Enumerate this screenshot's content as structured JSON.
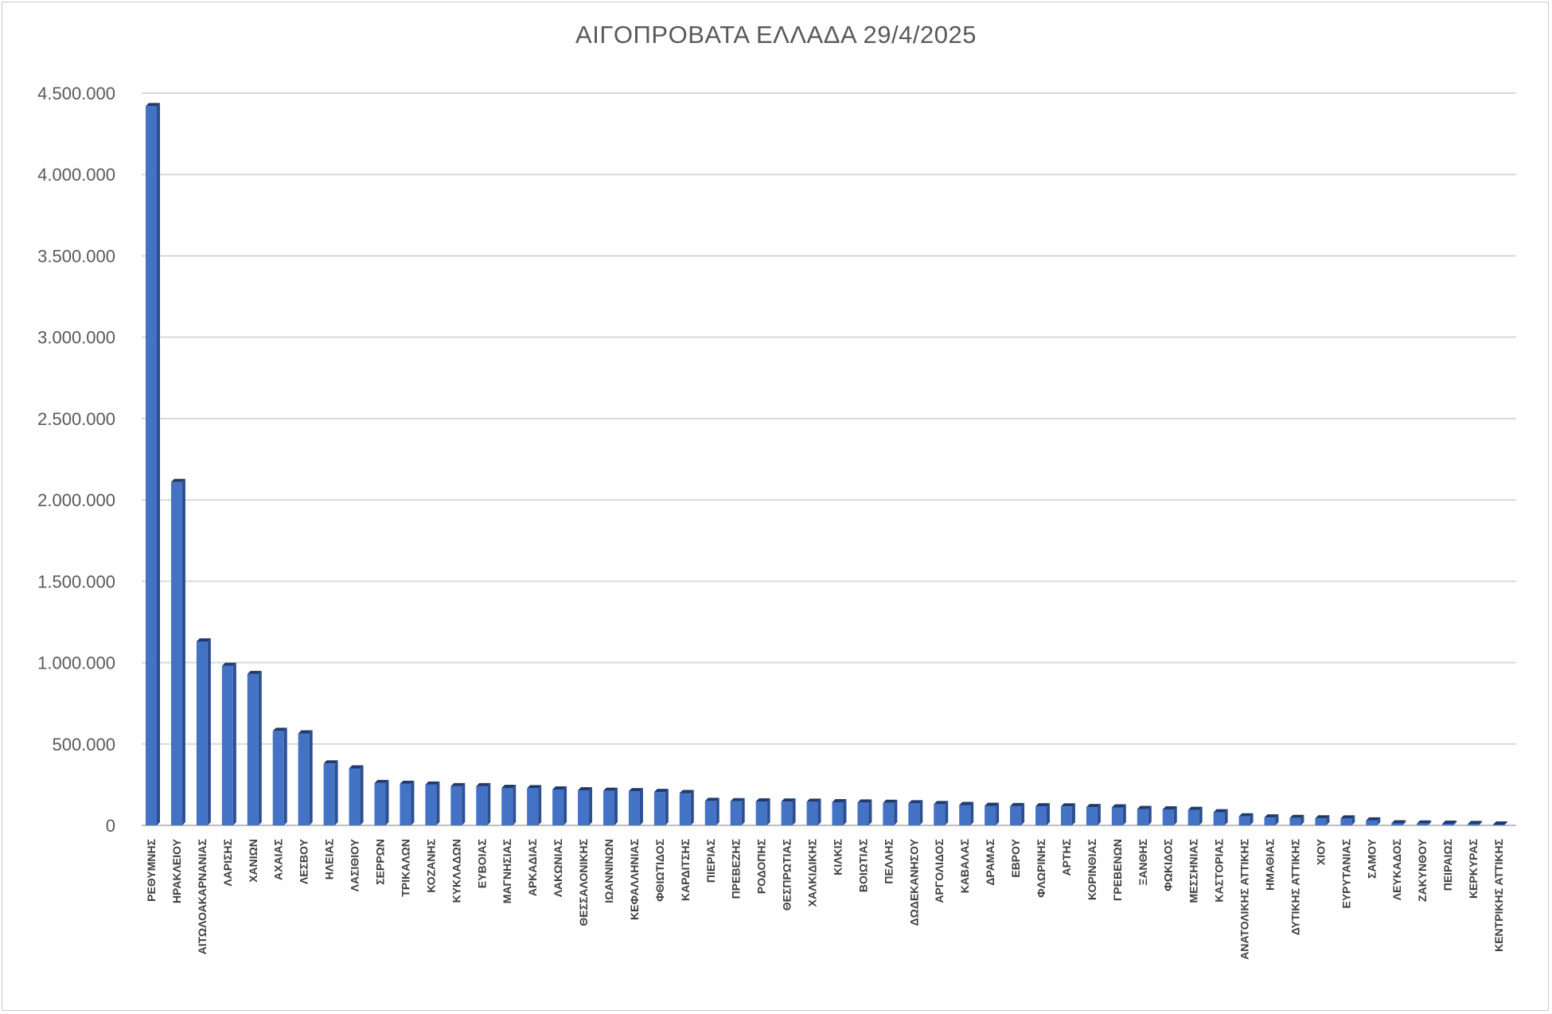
{
  "chart_data": {
    "type": "bar",
    "title": "ΑΙΓΟΠΡΟΒΑΤΑ ΕΛΛΑΔΑ 29/4/2025",
    "xlabel": "",
    "ylabel": "",
    "ylim": [
      0,
      4500000
    ],
    "y_ticks": [
      "0",
      "500.000",
      "1.000.000",
      "1.500.000",
      "2.000.000",
      "2.500.000",
      "3.000.000",
      "3.500.000",
      "4.000.000",
      "4.500.000"
    ],
    "grid": true,
    "legend": "none",
    "categories": [
      "ΡΕΘΥΜΝΗΣ",
      "ΗΡΑΚΛΕΙΟΥ",
      "ΑΙΤΩΛΟΑΚΑΡΝΑΝΙΑΣ",
      "ΛΑΡΙΣΗΣ",
      "ΧΑΝΙΩΝ",
      "ΑΧΑΙΑΣ",
      "ΛΕΣΒΟΥ",
      "ΗΛΕΙΑΣ",
      "ΛΑΣΙΘΙΟΥ",
      "ΣΕΡΡΩΝ",
      "ΤΡΙΚΑΛΩΝ",
      "ΚΟΖΑΝΗΣ",
      "ΚΥΚΛΑΔΩΝ",
      "ΕΥΒΟΙΑΣ",
      "ΜΑΓΝΗΣΙΑΣ",
      "ΑΡΚΑΔΙΑΣ",
      "ΛΑΚΩΝΙΑΣ",
      "ΘΕΣΣΑΛΟΝΙΚΗΣ",
      "ΙΩΑΝΝΙΝΩΝ",
      "ΚΕΦΑΛΛΗΝΙΑΣ",
      "ΦΘΙΩΤΙΔΟΣ",
      "ΚΑΡΔΙΤΣΗΣ",
      "ΠΙΕΡΙΑΣ",
      "ΠΡΕΒΕΖΗΣ",
      "ΡΟΔΟΠΗΣ",
      "ΘΕΣΠΡΩΤΙΑΣ",
      "ΧΑΛΚΙΔΙΚΗΣ",
      "ΚΙΛΚΙΣ",
      "ΒΟΙΩΤΙΑΣ",
      "ΠΕΛΛΗΣ",
      "ΔΩΔΕΚΑΝΗΣΟΥ",
      "ΑΡΓΟΛΙΔΟΣ",
      "ΚΑΒΑΛΑΣ",
      "ΔΡΑΜΑΣ",
      "ΕΒΡΟΥ",
      "ΦΛΩΡΙΝΗΣ",
      "ΑΡΤΗΣ",
      "ΚΟΡΙΝΘΙΑΣ",
      "ΓΡΕΒΕΝΩΝ",
      "ΞΑΝΘΗΣ",
      "ΦΩΚΙΔΟΣ",
      "ΜΕΣΣΗΝΙΑΣ",
      "ΚΑΣΤΟΡΙΑΣ",
      "ΑΝΑΤΟΛΙΚΗΣ ΑΤΤΙΚΗΣ",
      "ΗΜΑΘΙΑΣ",
      "ΔΥΤΙΚΗΣ ΑΤΤΙΚΗΣ",
      "ΧΙΟΥ",
      "ΕΥΡΥΤΑΝΙΑΣ",
      "ΣΑΜΟΥ",
      "ΛΕΥΚΑΔΟΣ",
      "ΖΑΚΥΝΘΟΥ",
      "ΠΕΙΡΑΙΩΣ",
      "ΚΕΡΚΥΡΑΣ",
      "ΚΕΝΤΡΙΚΗΣ ΑΤΤΙΚΗΣ"
    ],
    "values": [
      4420000,
      2110000,
      1130000,
      980000,
      930000,
      580000,
      565000,
      380000,
      350000,
      260000,
      255000,
      250000,
      240000,
      240000,
      230000,
      228000,
      220000,
      215000,
      212000,
      210000,
      205000,
      198000,
      150000,
      148000,
      147000,
      146000,
      145000,
      142000,
      140000,
      138000,
      135000,
      130000,
      125000,
      120000,
      118000,
      117000,
      116000,
      112000,
      110000,
      100000,
      98000,
      95000,
      80000,
      55000,
      48000,
      45000,
      43000,
      42000,
      30000,
      12000,
      11000,
      10000,
      8000,
      5000
    ],
    "bar_color": "#4472c4",
    "bar_side_color": "#2c4f8f",
    "bar_top_color": "#1f3a6e"
  }
}
